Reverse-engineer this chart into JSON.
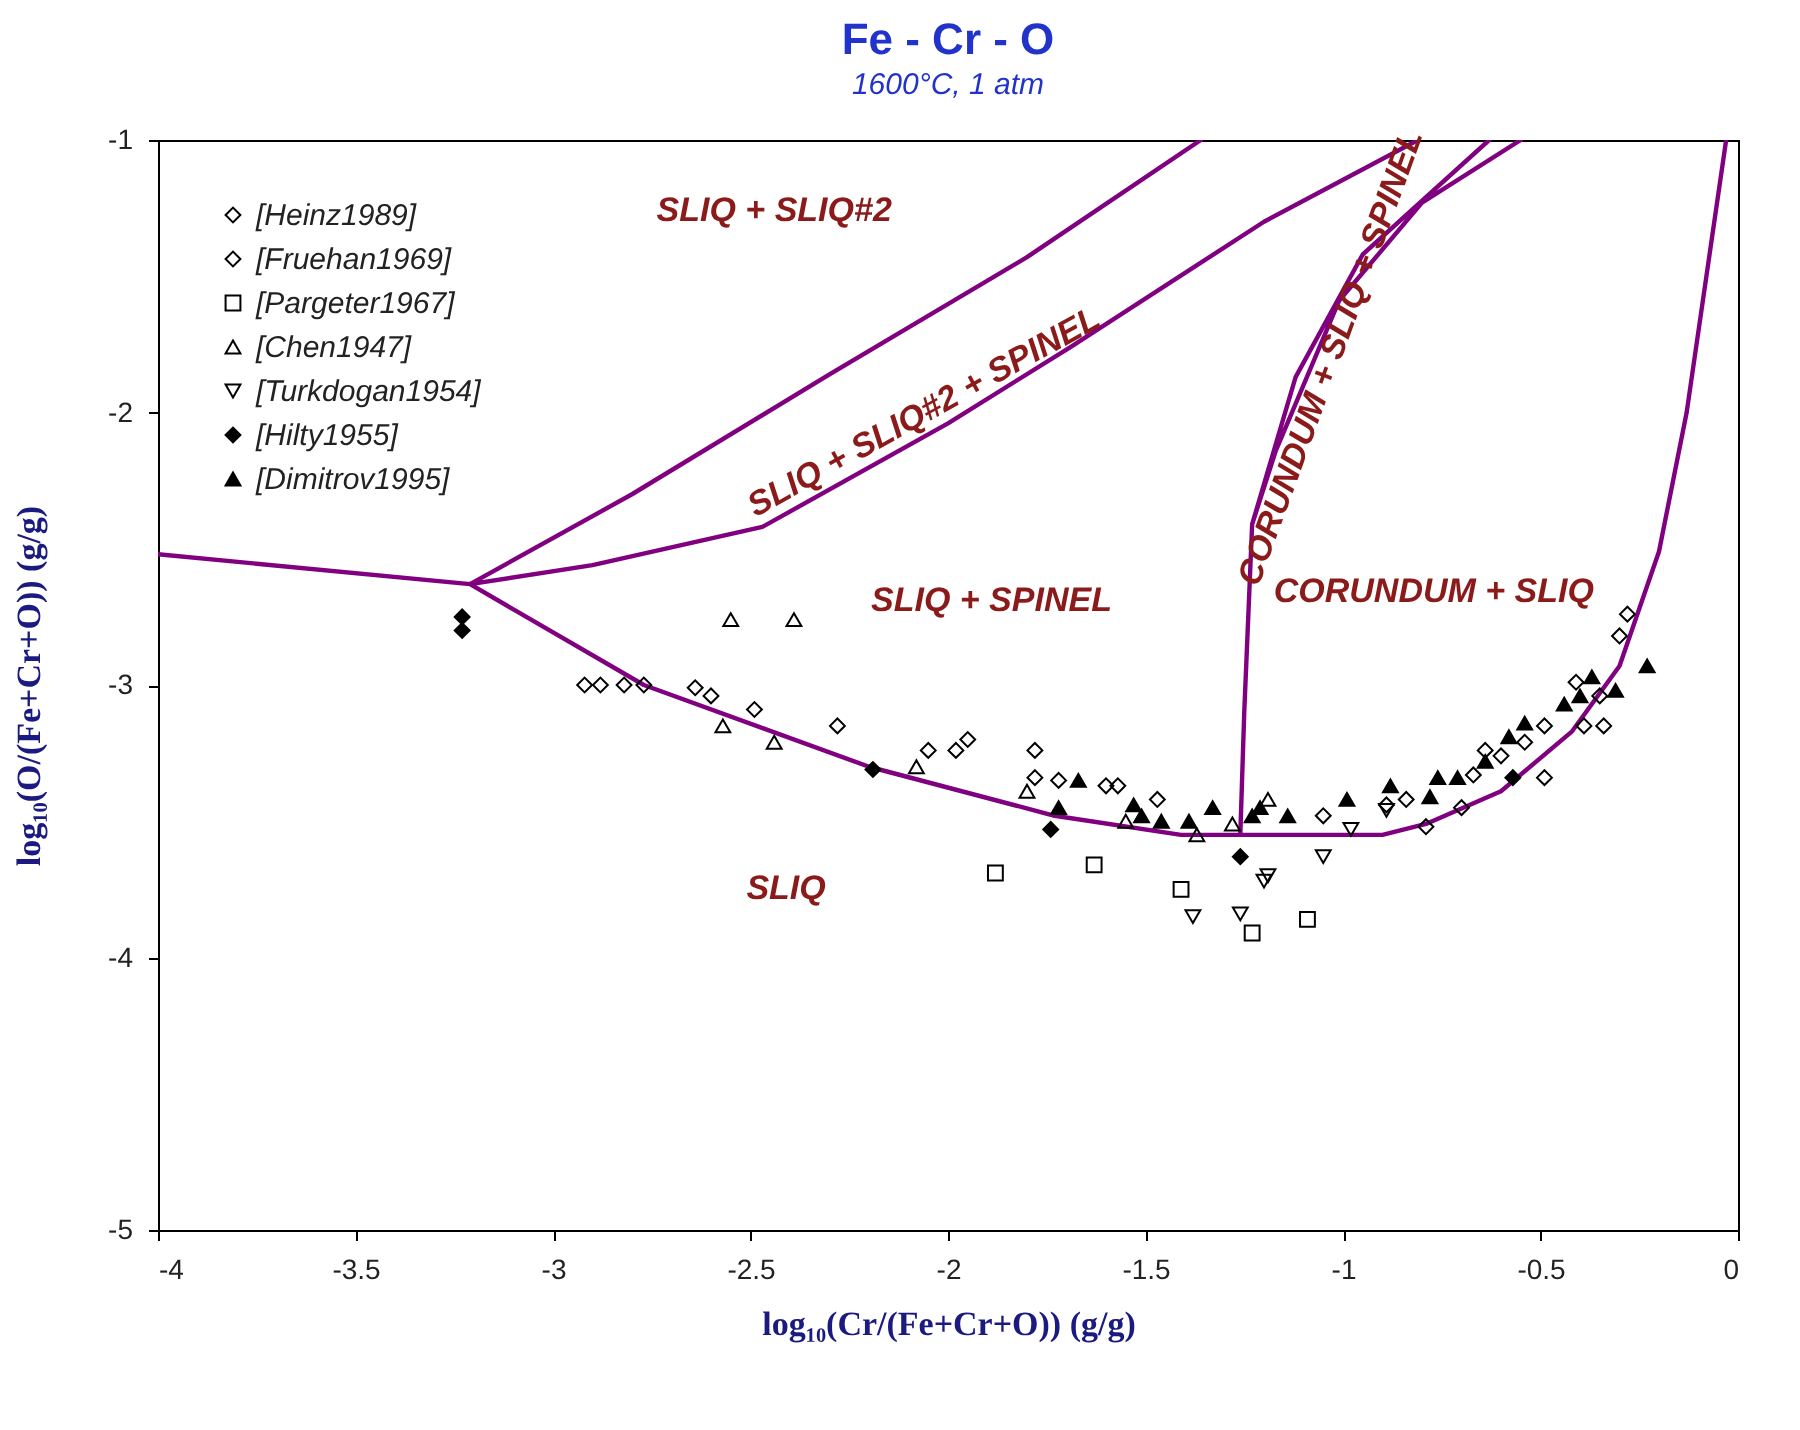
{
  "chart_data": {
    "type": "scatter",
    "title": "Fe - Cr - O",
    "subtitle": "1600°C, 1 atm",
    "xlabel": "log₁₀(Cr/(Fe+Cr+O)) (g/g)",
    "ylabel": "log₁₀(O/(Fe+Cr+O)) (g/g)",
    "xlim": [
      -4,
      0
    ],
    "ylim": [
      -5,
      -1
    ],
    "xticks": [
      -4,
      -3.5,
      -3,
      -2.5,
      -2,
      -1.5,
      -1,
      -0.5,
      0
    ],
    "yticks": [
      -5,
      -4,
      -3,
      -2,
      -1
    ],
    "grid": false,
    "legend": "top left",
    "series": [
      {
        "name": "[Heinz1989]",
        "color": "#000000",
        "marker": "diamond-open",
        "x": [
          -2.92,
          -2.88,
          -2.82,
          -2.77,
          -2.64,
          -2.6,
          -2.49,
          -2.28,
          -2.05,
          -1.98,
          -1.95,
          -1.78,
          -1.78,
          -1.72
        ],
        "values": [
          -3.0,
          -3.0,
          -3.0,
          -3.0,
          -3.01,
          -3.04,
          -3.09,
          -3.15,
          -3.24,
          -3.24,
          -3.2,
          -3.24,
          -3.34,
          -3.35
        ]
      },
      {
        "name": "[Fruehan1969]",
        "color": "#000000",
        "marker": "diamond-open",
        "x": [
          -1.6,
          -1.57,
          -1.47,
          -1.05,
          -0.89,
          -0.84,
          -0.79,
          -0.7,
          -0.67,
          -0.64,
          -0.6,
          -0.54,
          -0.49,
          -0.49,
          -0.41,
          -0.39,
          -0.35,
          -0.34,
          -0.3,
          -0.28
        ],
        "values": [
          -3.37,
          -3.37,
          -3.42,
          -3.48,
          -3.44,
          -3.42,
          -3.52,
          -3.45,
          -3.33,
          -3.24,
          -3.26,
          -3.21,
          -3.15,
          -3.34,
          -2.99,
          -3.15,
          -3.04,
          -3.15,
          -2.82,
          -2.74
        ]
      },
      {
        "name": "[Pargeter1967]",
        "color": "#000000",
        "marker": "square-open",
        "x": [
          -1.88,
          -1.63,
          -1.41,
          -1.23,
          -1.09
        ],
        "values": [
          -3.69,
          -3.66,
          -3.75,
          -3.91,
          -3.86
        ]
      },
      {
        "name": "[Chen1947]",
        "color": "#000000",
        "marker": "triangle-open",
        "x": [
          -2.55,
          -2.39,
          -2.57,
          -2.44,
          -2.08,
          -1.8,
          -1.55,
          -1.37,
          -1.28,
          -1.19
        ],
        "values": [
          -2.76,
          -2.76,
          -3.15,
          -3.21,
          -3.3,
          -3.39,
          -3.5,
          -3.55,
          -3.51,
          -3.42
        ]
      },
      {
        "name": "[Turkdogan1954]",
        "color": "#000000",
        "marker": "triangle-down-open",
        "x": [
          -1.38,
          -1.26,
          -1.2,
          -1.19,
          -1.05,
          -0.98,
          -0.89
        ],
        "values": [
          -3.85,
          -3.84,
          -3.72,
          -3.7,
          -3.63,
          -3.53,
          -3.46
        ]
      },
      {
        "name": "[Hilty1955]",
        "color": "#000000",
        "marker": "diamond",
        "x": [
          -3.23,
          -3.23,
          -2.19,
          -1.74,
          -1.26,
          -0.57
        ],
        "values": [
          -2.75,
          -2.8,
          -3.31,
          -3.53,
          -3.63,
          -3.34
        ]
      },
      {
        "name": "[Dimitrov1995]",
        "color": "#000000",
        "marker": "triangle",
        "x": [
          -1.67,
          -1.72,
          -1.53,
          -1.51,
          -1.46,
          -1.39,
          -1.33,
          -1.23,
          -1.21,
          -1.14,
          -0.99,
          -0.88,
          -0.78,
          -0.76,
          -0.71,
          -0.64,
          -0.58,
          -0.54,
          -0.44,
          -0.4,
          -0.37,
          -0.31,
          -0.23
        ],
        "values": [
          -3.35,
          -3.45,
          -3.44,
          -3.48,
          -3.5,
          -3.5,
          -3.45,
          -3.48,
          -3.45,
          -3.48,
          -3.42,
          -3.37,
          -3.41,
          -3.34,
          -3.34,
          -3.28,
          -3.19,
          -3.14,
          -3.07,
          -3.04,
          -2.97,
          -3.02,
          -2.93
        ]
      },
      {
        "type": "line",
        "color": "#800080",
        "x": [
          -4,
          -3.21,
          -2.8,
          -2.3,
          -1.8,
          -1.36,
          null,
          -3.21,
          -2.9,
          -2.47,
          -2.0,
          -1.69,
          -1.2,
          -0.81,
          null,
          -3.21,
          -2.77,
          -2.2,
          -1.73,
          -1.41,
          -1.26,
          -0.9,
          -0.79,
          -0.6,
          -0.42,
          -0.3,
          -0.2,
          -0.13,
          -0.08,
          -0.03,
          null,
          -1.26,
          -1.25,
          -1.23,
          -1.12,
          -0.95,
          -0.63,
          null,
          -1.23,
          -1.17,
          -1.01,
          -0.8,
          -0.55
        ],
        "values": [
          -2.52,
          -2.63,
          -2.3,
          -1.86,
          -1.43,
          -1.0,
          null,
          -2.63,
          -2.56,
          -2.42,
          -2.04,
          -1.76,
          -1.3,
          -1.0,
          null,
          -2.63,
          -3.0,
          -3.3,
          -3.48,
          -3.55,
          -3.55,
          -3.55,
          -3.51,
          -3.39,
          -3.17,
          -2.93,
          -2.51,
          -2.0,
          -1.5,
          -1.0,
          null,
          -3.55,
          -3.1,
          -2.41,
          -1.87,
          -1.42,
          -1.0,
          null,
          -2.41,
          -2.14,
          -1.59,
          -1.23,
          -1.0
        ]
      }
    ],
    "annotations": [
      "SLIQ + SLIQ#2",
      "SLIQ + SLIQ#2 + SPINEL",
      "SLIQ + SPINEL",
      "CORUNDUM + SLIQ + SPINEL",
      "CORUNDUM + SLIQ",
      "SLIQ"
    ]
  }
}
